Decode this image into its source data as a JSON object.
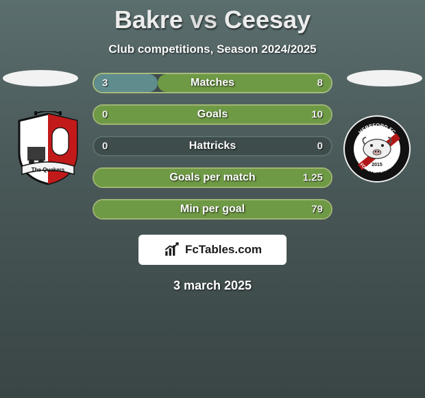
{
  "title": {
    "player1": "Bakre",
    "vs": "vs",
    "player2": "Ceesay"
  },
  "subtitle": "Club competitions, Season 2024/2025",
  "date": "3 march 2025",
  "badge": {
    "text": "FcTables.com"
  },
  "left_crest": {
    "banner_text": "The Quakers",
    "shield_fill": "#ffffff",
    "shield_stroke": "#111111",
    "stripe_color": "#c21a1a"
  },
  "right_crest": {
    "top_text": "HEREFORD FC",
    "bottom_text": "FOREVER UNITED",
    "year": "2015",
    "ring_fill": "#111111",
    "inner_fill": "#ffffff",
    "sash_color": "#b11818"
  },
  "colors": {
    "left_fill": "#5f8c8c",
    "right_fill": "#6f9a45",
    "left_border": "#a6bb7e",
    "right_border": "#9fb574",
    "neutral_bg": "#3f4c4c",
    "hattrick_border": "#5b6e6e"
  },
  "stats": [
    {
      "label": "Matches",
      "left": {
        "value": "3",
        "pct": 27
      },
      "right": {
        "value": "8",
        "pct": 73
      },
      "left_fill": "#5f8c8c",
      "right_fill": "#6f9a45",
      "border": "#a6bb7e"
    },
    {
      "label": "Goals",
      "left": {
        "value": "0",
        "pct": 0
      },
      "right": {
        "value": "10",
        "pct": 100
      },
      "left_fill": "#5f8c8c",
      "right_fill": "#6f9a45",
      "border": "#9fb574"
    },
    {
      "label": "Hattricks",
      "left": {
        "value": "0",
        "pct": 0
      },
      "right": {
        "value": "0",
        "pct": 0
      },
      "left_fill": "#3f4c4c",
      "right_fill": "#3f4c4c",
      "border": "#5b6e6e"
    },
    {
      "label": "Goals per match",
      "left": {
        "value": "",
        "pct": 0
      },
      "right": {
        "value": "1.25",
        "pct": 100
      },
      "left_fill": "#5f8c8c",
      "right_fill": "#6f9a45",
      "border": "#9fb574"
    },
    {
      "label": "Min per goal",
      "left": {
        "value": "",
        "pct": 0
      },
      "right": {
        "value": "79",
        "pct": 100
      },
      "left_fill": "#5f8c8c",
      "right_fill": "#6f9a45",
      "border": "#9fb574"
    }
  ]
}
